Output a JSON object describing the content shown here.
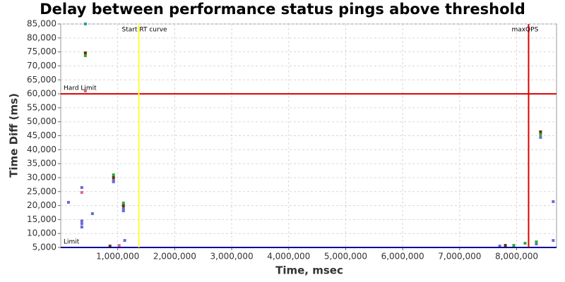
{
  "chart_data": {
    "type": "scatter",
    "title": "Delay between performance status pings above threshold",
    "x_label": "Time, msec",
    "y_label": "Time Diff (ms)",
    "xlim": [
      0,
      8700000
    ],
    "ylim": [
      5000,
      85000
    ],
    "grid": true,
    "xticks": [
      {
        "value": 1000000,
        "label": "1,000,000"
      },
      {
        "value": 2000000,
        "label": "2,000,000"
      },
      {
        "value": 3000000,
        "label": "3,000,000"
      },
      {
        "value": 4000000,
        "label": "4,000,000"
      },
      {
        "value": 5000000,
        "label": "5,000,000"
      },
      {
        "value": 6000000,
        "label": "6,000,000"
      },
      {
        "value": 7000000,
        "label": "7,000,000"
      },
      {
        "value": 8000000,
        "label": "8,000,000"
      }
    ],
    "yticks": [
      {
        "value": 5000,
        "label": "5,000"
      },
      {
        "value": 10000,
        "label": "10,000"
      },
      {
        "value": 15000,
        "label": "15,000"
      },
      {
        "value": 20000,
        "label": "20,000"
      },
      {
        "value": 25000,
        "label": "25,000"
      },
      {
        "value": 30000,
        "label": "30,000"
      },
      {
        "value": 35000,
        "label": "35,000"
      },
      {
        "value": 40000,
        "label": "40,000"
      },
      {
        "value": 45000,
        "label": "45,000"
      },
      {
        "value": 50000,
        "label": "50,000"
      },
      {
        "value": 55000,
        "label": "55,000"
      },
      {
        "value": 60000,
        "label": "60,000"
      },
      {
        "value": 65000,
        "label": "65,000"
      },
      {
        "value": 70000,
        "label": "70,000"
      },
      {
        "value": 75000,
        "label": "75,000"
      },
      {
        "value": 80000,
        "label": "80,000"
      },
      {
        "value": 85000,
        "label": "85,000"
      }
    ],
    "reference_lines": [
      {
        "orientation": "horizontal",
        "value": 60000,
        "label": "Hard Limit",
        "color": "#dd0000"
      },
      {
        "orientation": "horizontal",
        "value": 5000,
        "label": "Limit",
        "color": "#000099"
      },
      {
        "orientation": "vertical",
        "value": 1370000,
        "label": "Start RT curve",
        "color": "#ffff33"
      },
      {
        "orientation": "vertical",
        "value": 8210000,
        "label": "maxQPS",
        "color": "#dd0000"
      }
    ],
    "series": [
      {
        "color": "#6a6ad8",
        "x": [
          136000,
          370000,
          370000,
          370000,
          370000,
          556000,
          926000,
          926000,
          1100000,
          1100000,
          1123000,
          7704000,
          8346000,
          8420000,
          8642000,
          8642000
        ],
        "values": [
          21150,
          26450,
          12300,
          13500,
          14500,
          17100,
          29000,
          28500,
          18900,
          18100,
          7500,
          5500,
          6260,
          44400,
          21400,
          7500
        ]
      },
      {
        "color": "#33aa33",
        "x": [
          432000,
          926000,
          1100000,
          8148000,
          8346000,
          8420000,
          7950000
        ],
        "values": [
          73640,
          31000,
          20900,
          6500,
          7000,
          45400,
          5750
        ]
      },
      {
        "color": "#663300",
        "x": [
          432000,
          926000,
          1100000,
          864000,
          8420000,
          7802000
        ],
        "values": [
          74650,
          30000,
          19900,
          5500,
          46400,
          5750
        ]
      },
      {
        "color": "#dd6688",
        "x": [
          370000,
          432000,
          1025000
        ],
        "values": [
          24700,
          61000,
          5700
        ]
      },
      {
        "color": "#339999",
        "x": [
          432000
        ],
        "values": [
          85000
        ]
      }
    ]
  }
}
